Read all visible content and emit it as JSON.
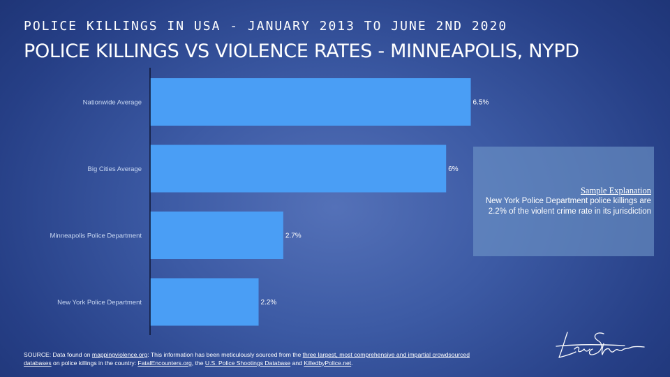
{
  "header": {
    "supertitle": "POLICE KILLINGS IN USA - JANUARY 2013 TO JUNE 2ND 2020",
    "title": "POLICE KILLINGS VS VIOLENCE RATES - MINNEAPOLIS, NYPD"
  },
  "chart_data": {
    "type": "bar",
    "orientation": "horizontal",
    "categories": [
      "Nationwide Average",
      "Big Cities Average",
      "Minneapolis Police Department",
      "New York Police Department"
    ],
    "values": [
      6.5,
      6,
      2.7,
      2.2
    ],
    "data_labels": [
      "6.5%",
      "6%",
      "2.7%",
      "2.2%"
    ],
    "unit": "%",
    "xlim": [
      0,
      8
    ],
    "grid": false,
    "bar_color": "#4a9ef5",
    "axis_color": "#0d1430"
  },
  "explanation": {
    "title": "Sample Explanation",
    "body_line1": "New York Police Department police killings are",
    "body_line2": "2.2% of the violent crime rate in its jurisdiction"
  },
  "source": {
    "prefix": "SOURCE: Data found on ",
    "link1": "mappingviolence.org",
    "mid1": ": This information has been meticulously sourced from the ",
    "link2": "three largest, most comprehensive and impartial crowdsourced databases",
    "mid2": " on police killings in the country: ",
    "link3": "FatalEncounters.org",
    "mid3": ", the ",
    "link4": "U.S. Police Shootings Database",
    "mid4": " and ",
    "link5": "KilledbyPolice.net",
    "suffix": "."
  },
  "signature_icon": "handwritten-signature-icon"
}
